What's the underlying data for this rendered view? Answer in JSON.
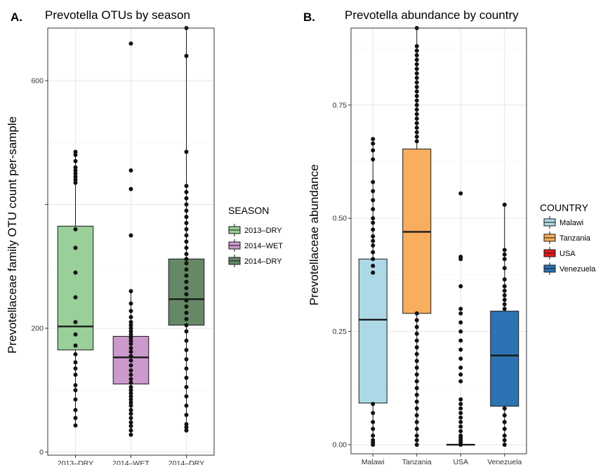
{
  "panels": {
    "a": {
      "letter": "A.",
      "title": "Prevotella OTUs by season",
      "ylabel": "Prevotellaceae family OTU count per-sample",
      "legend_title": "SEASON"
    },
    "b": {
      "letter": "B.",
      "title": "Prevotella abundance by country",
      "ylabel": "Prevotellaceae abundance",
      "legend_title": "COUNTRY"
    }
  },
  "chart_data": [
    {
      "type": "box",
      "title": "Prevotella OTUs by season",
      "xlabel": "",
      "ylabel": "Prevotellaceae family OTU count per-sample",
      "ylim": [
        -5,
        685
      ],
      "yticks": [
        0,
        200,
        400,
        600
      ],
      "ytick_labels": [
        "0",
        "200",
        "",
        "600"
      ],
      "grid": true,
      "legend_position": "right",
      "categories": [
        "2013–DRY",
        "2014–WET",
        "2014–DRY"
      ],
      "colors": [
        "#99cf99",
        "#cc99cc",
        "#668866"
      ],
      "boxes": [
        {
          "q1": 165,
          "median": 203,
          "q3": 365,
          "whisker_low": 43,
          "whisker_high": 485
        },
        {
          "q1": 110,
          "median": 153,
          "q3": 187,
          "whisker_low": 28,
          "whisker_high": 260
        },
        {
          "q1": 205,
          "median": 247,
          "q3": 312,
          "whisker_low": 43,
          "whisker_high": 685
        }
      ],
      "points": [
        [
          43,
          55,
          68,
          85,
          100,
          108,
          125,
          135,
          145,
          158,
          172,
          190,
          210,
          250,
          290,
          330,
          360,
          435,
          440,
          445,
          450,
          455,
          460,
          470,
          480,
          485
        ],
        [
          28,
          35,
          42,
          48,
          55,
          62,
          68,
          75,
          80,
          85,
          90,
          95,
          100,
          105,
          112,
          118,
          125,
          132,
          140,
          148,
          155,
          162,
          168,
          175,
          180,
          185,
          190,
          195,
          200,
          205,
          210,
          218,
          228,
          240,
          260,
          350,
          425,
          455,
          660
        ],
        [
          35,
          40,
          45,
          60,
          75,
          90,
          105,
          120,
          135,
          150,
          165,
          180,
          195,
          205,
          215,
          225,
          235,
          245,
          255,
          265,
          275,
          285,
          295,
          305,
          312,
          320,
          330,
          340,
          350,
          360,
          370,
          380,
          390,
          400,
          410,
          420,
          430,
          485,
          640,
          685
        ]
      ]
    },
    {
      "type": "box",
      "title": "Prevotella abundance by country",
      "xlabel": "",
      "ylabel": "Prevotellaceae abundance",
      "ylim": [
        -0.02,
        0.92
      ],
      "yticks": [
        0.0,
        0.25,
        0.5,
        0.75
      ],
      "ytick_labels": [
        "0.00",
        "0.25",
        "0.50",
        "0.75"
      ],
      "grid": true,
      "legend_position": "right",
      "categories": [
        "Malawi",
        "Tanzania",
        "USA",
        "Venezuela"
      ],
      "colors": [
        "#add8e6",
        "#f8ad5f",
        "#e41a1c",
        "#2b73b2"
      ],
      "boxes": [
        {
          "q1": 0.092,
          "median": 0.276,
          "q3": 0.41,
          "whisker_low": 0.0,
          "whisker_high": 0.675
        },
        {
          "q1": 0.29,
          "median": 0.47,
          "q3": 0.653,
          "whisker_low": 0.0,
          "whisker_high": 0.92
        },
        {
          "q1": 0.0,
          "median": 0.0,
          "q3": 0.0,
          "whisker_low": 0.0,
          "whisker_high": 0.0
        },
        {
          "q1": 0.085,
          "median": 0.197,
          "q3": 0.295,
          "whisker_low": 0.0,
          "whisker_high": 0.53
        }
      ],
      "points": [
        [
          0.0,
          0.005,
          0.01,
          0.02,
          0.035,
          0.05,
          0.07,
          0.09,
          0.38,
          0.395,
          0.41,
          0.425,
          0.44,
          0.45,
          0.46,
          0.475,
          0.49,
          0.5,
          0.52,
          0.54,
          0.56,
          0.58,
          0.63,
          0.65,
          0.665,
          0.675
        ],
        [
          0.0,
          0.01,
          0.02,
          0.035,
          0.05,
          0.065,
          0.08,
          0.095,
          0.11,
          0.125,
          0.14,
          0.155,
          0.17,
          0.185,
          0.2,
          0.215,
          0.23,
          0.245,
          0.26,
          0.275,
          0.29,
          0.67,
          0.68,
          0.69,
          0.7,
          0.71,
          0.72,
          0.73,
          0.74,
          0.75,
          0.76,
          0.77,
          0.78,
          0.79,
          0.8,
          0.81,
          0.82,
          0.83,
          0.84,
          0.85,
          0.86,
          0.87,
          0.88,
          0.92
        ],
        [
          0.0,
          0.005,
          0.01,
          0.015,
          0.02,
          0.03,
          0.04,
          0.05,
          0.06,
          0.07,
          0.08,
          0.09,
          0.1,
          0.14,
          0.155,
          0.17,
          0.19,
          0.21,
          0.23,
          0.25,
          0.27,
          0.29,
          0.3,
          0.35,
          0.41,
          0.415,
          0.555
        ],
        [
          0.0,
          0.01,
          0.02,
          0.035,
          0.05,
          0.065,
          0.08,
          0.3,
          0.31,
          0.32,
          0.33,
          0.34,
          0.35,
          0.365,
          0.39,
          0.41,
          0.42,
          0.43,
          0.53
        ]
      ]
    }
  ],
  "legend_a": [
    "2013–DRY",
    "2014–WET",
    "2014–DRY"
  ],
  "legend_b": [
    "Malawi",
    "Tanzania",
    "USA",
    "Venezuela"
  ]
}
